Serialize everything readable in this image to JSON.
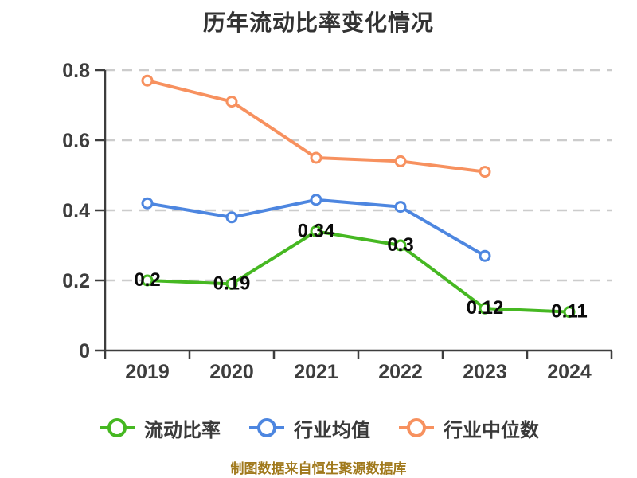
{
  "title": "历年流动比率变化情况",
  "footer": "制图数据来自恒生聚源数据库",
  "colors": {
    "axis": "#3d3d3d",
    "grid": "#cccccc",
    "text": "#3d3d3d",
    "title": "#333333",
    "point_label": "#0a0a0a",
    "footer": "#a0791c",
    "marker_fill": "#ffffff"
  },
  "chart_data": {
    "type": "line",
    "title": "历年流动比率变化情况",
    "x": [
      "2019",
      "2020",
      "2021",
      "2022",
      "2023",
      "2024"
    ],
    "series": [
      {
        "key": "current-ratio",
        "name": "流动比率",
        "color": "#46b822",
        "values": [
          0.2,
          0.19,
          0.34,
          0.3,
          0.12,
          0.11
        ],
        "point_labels": [
          "0.2",
          "0.19",
          "0.34",
          "0.3",
          "0.12",
          "0.11"
        ]
      },
      {
        "key": "industry-mean",
        "name": "行业均值",
        "color": "#4d86e0",
        "values": [
          0.42,
          0.38,
          0.43,
          0.41,
          0.27,
          null
        ]
      },
      {
        "key": "industry-median",
        "name": "行业中位数",
        "color": "#f7915f",
        "values": [
          0.77,
          0.71,
          0.55,
          0.54,
          0.51,
          null
        ]
      }
    ],
    "ylim": [
      0,
      0.8
    ],
    "yticks": [
      0,
      0.2,
      0.4,
      0.6,
      0.8
    ],
    "ytick_labels": [
      "0",
      "0.2",
      "0.4",
      "0.6",
      "0.8"
    ],
    "grid": "horizontal dashed",
    "legend_position": "bottom",
    "marker": "circle white-filled"
  }
}
